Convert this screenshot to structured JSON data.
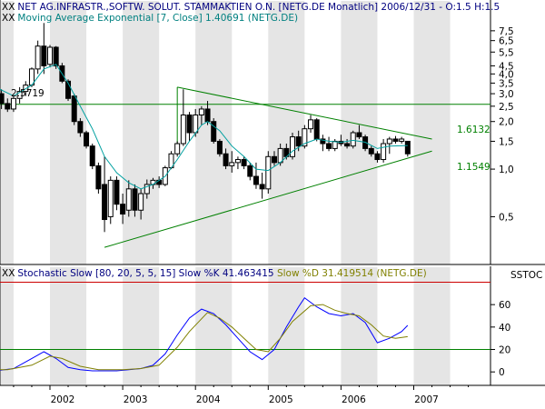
{
  "colors": {
    "background": "#ffffff",
    "stripe": "#e5e5e5",
    "candle": "#000000",
    "moving_average": "#00a0a0",
    "channel_lines": "#008000",
    "stoch_k": "#0000ff",
    "stoch_d": "#808000",
    "overbought_line": "#cc0000",
    "oversold_line": "#008000",
    "title_text": "#000080",
    "indicator_text": "#008080"
  },
  "header": {
    "title": "NET AG.INFRASTR.,SOFTW. SOLUT. STAMMAKTIEN O.N. [NETG.DE  Monatlich] 2006/12/31 - O:1.5 H:1.5",
    "ma_label": "Moving Average Exponential [7, Close] 1.40691 (NETG.DE)",
    "stoch_label_prefix": "Stochastic Slow [80, 20, 5, 5, 15] Slow %K 41.463415 ",
    "stoch_label_suffix": "Slow %D 31.419514 (NETG.DE)",
    "xx_mark": "XX"
  },
  "annotations": {
    "level_left": "2.5719",
    "upper_right": "1.6132",
    "lower_right": "1.1549"
  },
  "chart_data": [
    {
      "type": "candlestick",
      "title": "NET AG.INFRASTR.,SOFTW. SOLUT. STAMMAKTIEN O.N. [NETG.DE  Monatlich] 2006/12/31 - O:1.5 H:1.5",
      "y_scale": "log",
      "ylim": [
        0.27,
        9.5
      ],
      "y_ticks": [
        {
          "value": 7.5,
          "label": "7,5"
        },
        {
          "value": 6.5,
          "label": "6,5"
        },
        {
          "value": 5.5,
          "label": "5,5"
        },
        {
          "value": 4.5,
          "label": "4,5"
        },
        {
          "value": 4.0,
          "label": "4,0"
        },
        {
          "value": 3.5,
          "label": "3,5"
        },
        {
          "value": 3.0,
          "label": "3,0"
        },
        {
          "value": 2.5,
          "label": "2,5"
        },
        {
          "value": 2.0,
          "label": "2,0"
        },
        {
          "value": 1.5,
          "label": "1,5"
        },
        {
          "value": 1.0,
          "label": "1,0"
        },
        {
          "value": 0.5,
          "label": "0,5"
        }
      ],
      "x_labels": [
        "2002",
        "2003",
        "2004",
        "2005",
        "2006",
        "2007"
      ],
      "candles": [
        {
          "date": "2001-01",
          "o": 4.2,
          "h": 5.0,
          "l": 3.6,
          "c": 4.6
        },
        {
          "date": "2001-02",
          "o": 4.6,
          "h": 4.9,
          "l": 3.4,
          "c": 3.7
        },
        {
          "date": "2001-03",
          "o": 3.6,
          "h": 3.7,
          "l": 2.5,
          "c": 2.7
        },
        {
          "date": "2001-04",
          "o": 2.7,
          "h": 3.2,
          "l": 2.6,
          "c": 3.0
        },
        {
          "date": "2001-05",
          "o": 3.0,
          "h": 3.2,
          "l": 2.4,
          "c": 2.6
        },
        {
          "date": "2001-06",
          "o": 2.6,
          "h": 2.8,
          "l": 2.3,
          "c": 2.4
        },
        {
          "date": "2001-07",
          "o": 2.4,
          "h": 2.9,
          "l": 2.3,
          "c": 2.8
        },
        {
          "date": "2001-08",
          "o": 2.8,
          "h": 3.3,
          "l": 2.6,
          "c": 3.1
        },
        {
          "date": "2001-09",
          "o": 3.1,
          "h": 3.6,
          "l": 2.9,
          "c": 3.4
        },
        {
          "date": "2001-10",
          "o": 3.4,
          "h": 4.4,
          "l": 3.3,
          "c": 4.3
        },
        {
          "date": "2001-11",
          "o": 4.3,
          "h": 6.5,
          "l": 4.0,
          "c": 6.0
        },
        {
          "date": "2001-12",
          "o": 6.0,
          "h": 8.4,
          "l": 4.0,
          "c": 4.5
        },
        {
          "date": "2002-01",
          "o": 4.6,
          "h": 6.1,
          "l": 4.4,
          "c": 5.9
        },
        {
          "date": "2002-02",
          "o": 5.9,
          "h": 6.0,
          "l": 4.3,
          "c": 4.5
        },
        {
          "date": "2002-03",
          "o": 4.5,
          "h": 4.7,
          "l": 3.5,
          "c": 3.6
        },
        {
          "date": "2002-04",
          "o": 3.6,
          "h": 3.7,
          "l": 2.7,
          "c": 2.8
        },
        {
          "date": "2002-05",
          "o": 2.9,
          "h": 3.0,
          "l": 1.9,
          "c": 2.0
        },
        {
          "date": "2002-06",
          "o": 2.0,
          "h": 2.1,
          "l": 1.6,
          "c": 1.7
        },
        {
          "date": "2002-07",
          "o": 1.7,
          "h": 1.75,
          "l": 1.35,
          "c": 1.4
        },
        {
          "date": "2002-08",
          "o": 1.4,
          "h": 1.45,
          "l": 1.0,
          "c": 1.05
        },
        {
          "date": "2002-09",
          "o": 1.05,
          "h": 1.1,
          "l": 0.7,
          "c": 0.75
        },
        {
          "date": "2002-10",
          "o": 0.8,
          "h": 1.2,
          "l": 0.4,
          "c": 0.48
        },
        {
          "date": "2002-11",
          "o": 0.5,
          "h": 0.9,
          "l": 0.45,
          "c": 0.85
        },
        {
          "date": "2002-12",
          "o": 0.85,
          "h": 0.9,
          "l": 0.55,
          "c": 0.6
        },
        {
          "date": "2003-01",
          "o": 0.6,
          "h": 0.7,
          "l": 0.45,
          "c": 0.52
        },
        {
          "date": "2003-02",
          "o": 0.55,
          "h": 0.85,
          "l": 0.5,
          "c": 0.75
        },
        {
          "date": "2003-03",
          "o": 0.75,
          "h": 0.8,
          "l": 0.5,
          "c": 0.55
        },
        {
          "date": "2003-04",
          "o": 0.55,
          "h": 0.75,
          "l": 0.48,
          "c": 0.7
        },
        {
          "date": "2003-05",
          "o": 0.7,
          "h": 0.86,
          "l": 0.65,
          "c": 0.8
        },
        {
          "date": "2003-06",
          "o": 0.8,
          "h": 0.88,
          "l": 0.75,
          "c": 0.85
        },
        {
          "date": "2003-07",
          "o": 0.85,
          "h": 0.9,
          "l": 0.76,
          "c": 0.8
        },
        {
          "date": "2003-08",
          "o": 0.8,
          "h": 1.05,
          "l": 0.78,
          "c": 1.02
        },
        {
          "date": "2003-09",
          "o": 1.02,
          "h": 1.3,
          "l": 1.0,
          "c": 1.25
        },
        {
          "date": "2003-10",
          "o": 1.25,
          "h": 1.5,
          "l": 1.2,
          "c": 1.45
        },
        {
          "date": "2003-11",
          "o": 1.45,
          "h": 3.2,
          "l": 1.4,
          "c": 2.2
        },
        {
          "date": "2003-12",
          "o": 2.2,
          "h": 2.3,
          "l": 1.5,
          "c": 1.7
        },
        {
          "date": "2004-01",
          "o": 1.7,
          "h": 2.4,
          "l": 1.6,
          "c": 2.2
        },
        {
          "date": "2004-02",
          "o": 2.2,
          "h": 2.5,
          "l": 1.9,
          "c": 2.4
        },
        {
          "date": "2004-03",
          "o": 2.4,
          "h": 2.7,
          "l": 1.9,
          "c": 2.0
        },
        {
          "date": "2004-04",
          "o": 2.0,
          "h": 2.1,
          "l": 1.45,
          "c": 1.5
        },
        {
          "date": "2004-05",
          "o": 1.5,
          "h": 1.55,
          "l": 1.2,
          "c": 1.25
        },
        {
          "date": "2004-06",
          "o": 1.25,
          "h": 1.35,
          "l": 1.0,
          "c": 1.05
        },
        {
          "date": "2004-07",
          "o": 1.05,
          "h": 1.3,
          "l": 0.95,
          "c": 1.1
        },
        {
          "date": "2004-08",
          "o": 1.1,
          "h": 1.2,
          "l": 1.0,
          "c": 1.15
        },
        {
          "date": "2004-09",
          "o": 1.15,
          "h": 1.2,
          "l": 1.0,
          "c": 1.05
        },
        {
          "date": "2004-10",
          "o": 1.05,
          "h": 1.1,
          "l": 0.85,
          "c": 0.9
        },
        {
          "date": "2004-11",
          "o": 0.9,
          "h": 1.1,
          "l": 0.75,
          "c": 0.8
        },
        {
          "date": "2004-12",
          "o": 0.8,
          "h": 0.95,
          "l": 0.65,
          "c": 0.75
        },
        {
          "date": "2005-01",
          "o": 0.75,
          "h": 1.3,
          "l": 0.7,
          "c": 1.2
        },
        {
          "date": "2005-02",
          "o": 1.2,
          "h": 1.3,
          "l": 1.05,
          "c": 1.1
        },
        {
          "date": "2005-03",
          "o": 1.1,
          "h": 1.45,
          "l": 1.05,
          "c": 1.35
        },
        {
          "date": "2005-04",
          "o": 1.35,
          "h": 1.45,
          "l": 1.15,
          "c": 1.2
        },
        {
          "date": "2005-05",
          "o": 1.2,
          "h": 1.7,
          "l": 1.15,
          "c": 1.6
        },
        {
          "date": "2005-06",
          "o": 1.6,
          "h": 1.75,
          "l": 1.3,
          "c": 1.4
        },
        {
          "date": "2005-07",
          "o": 1.4,
          "h": 1.9,
          "l": 1.35,
          "c": 1.8
        },
        {
          "date": "2005-08",
          "o": 1.8,
          "h": 2.2,
          "l": 1.7,
          "c": 2.05
        },
        {
          "date": "2005-09",
          "o": 2.05,
          "h": 2.1,
          "l": 1.5,
          "c": 1.55
        },
        {
          "date": "2005-10",
          "o": 1.55,
          "h": 1.65,
          "l": 1.3,
          "c": 1.45
        },
        {
          "date": "2005-11",
          "o": 1.45,
          "h": 1.6,
          "l": 1.3,
          "c": 1.35
        },
        {
          "date": "2005-12",
          "o": 1.35,
          "h": 1.55,
          "l": 1.3,
          "c": 1.5
        },
        {
          "date": "2006-01",
          "o": 1.5,
          "h": 1.65,
          "l": 1.4,
          "c": 1.45
        },
        {
          "date": "2006-02",
          "o": 1.45,
          "h": 1.55,
          "l": 1.35,
          "c": 1.4
        },
        {
          "date": "2006-03",
          "o": 1.4,
          "h": 1.75,
          "l": 1.35,
          "c": 1.7
        },
        {
          "date": "2006-04",
          "o": 1.7,
          "h": 1.9,
          "l": 1.55,
          "c": 1.6
        },
        {
          "date": "2006-05",
          "o": 1.6,
          "h": 1.65,
          "l": 1.3,
          "c": 1.35
        },
        {
          "date": "2006-06",
          "o": 1.35,
          "h": 1.4,
          "l": 1.2,
          "c": 1.25
        },
        {
          "date": "2006-07",
          "o": 1.25,
          "h": 1.3,
          "l": 1.1,
          "c": 1.15
        },
        {
          "date": "2006-08",
          "o": 1.15,
          "h": 1.55,
          "l": 1.1,
          "c": 1.45
        },
        {
          "date": "2006-09",
          "o": 1.45,
          "h": 1.6,
          "l": 1.25,
          "c": 1.55
        },
        {
          "date": "2006-10",
          "o": 1.55,
          "h": 1.62,
          "l": 1.45,
          "c": 1.5
        },
        {
          "date": "2006-11",
          "o": 1.5,
          "h": 1.6,
          "l": 1.45,
          "c": 1.55
        },
        {
          "date": "2006-12",
          "o": 1.5,
          "h": 1.5,
          "l": 1.2,
          "c": 1.25
        }
      ],
      "moving_average": {
        "name": "Moving Average Exponential [7, Close] 1.40691 (NETG.DE)",
        "points": [
          [
            "2001-01",
            4.5
          ],
          [
            "2001-04",
            3.3
          ],
          [
            "2001-07",
            2.9
          ],
          [
            "2001-10",
            3.4
          ],
          [
            "2001-12",
            4.3
          ],
          [
            "2002-02",
            4.6
          ],
          [
            "2002-04",
            3.5
          ],
          [
            "2002-06",
            2.5
          ],
          [
            "2002-08",
            1.8
          ],
          [
            "2002-10",
            1.2
          ],
          [
            "2002-12",
            0.95
          ],
          [
            "2003-02",
            0.82
          ],
          [
            "2003-04",
            0.75
          ],
          [
            "2003-06",
            0.8
          ],
          [
            "2003-08",
            0.9
          ],
          [
            "2003-10",
            1.15
          ],
          [
            "2003-12",
            1.5
          ],
          [
            "2004-02",
            1.9
          ],
          [
            "2004-03",
            2.0
          ],
          [
            "2004-05",
            1.75
          ],
          [
            "2004-07",
            1.4
          ],
          [
            "2004-09",
            1.2
          ],
          [
            "2004-11",
            1.0
          ],
          [
            "2005-01",
            0.98
          ],
          [
            "2005-03",
            1.1
          ],
          [
            "2005-05",
            1.3
          ],
          [
            "2005-07",
            1.45
          ],
          [
            "2005-09",
            1.55
          ],
          [
            "2005-11",
            1.5
          ],
          [
            "2006-01",
            1.48
          ],
          [
            "2006-03",
            1.52
          ],
          [
            "2006-05",
            1.48
          ],
          [
            "2006-07",
            1.35
          ],
          [
            "2006-09",
            1.4
          ],
          [
            "2006-12",
            1.41
          ]
        ]
      },
      "reference_lines": [
        {
          "type": "horizontal",
          "y": 2.5719,
          "label": "2.5719"
        },
        {
          "type": "trend",
          "from": [
            "2003-10",
            3.3
          ],
          "to": [
            "2007-04",
            1.55
          ]
        },
        {
          "type": "trend",
          "from": [
            "2002-10",
            0.32
          ],
          "to": [
            "2007-04",
            1.3
          ]
        },
        {
          "type": "trend",
          "from": [
            "2003-10",
            3.3
          ],
          "to": [
            "2003-10",
            1.3
          ]
        }
      ],
      "point_labels": [
        {
          "date": "2006-12",
          "value": 1.6132,
          "label": "1.6132"
        },
        {
          "date": "2006-12",
          "value": 1.1549,
          "label": "1.1549"
        }
      ]
    },
    {
      "type": "line",
      "title": "Stochastic Slow [80, 20, 5, 5, 15] Slow %K 41.463415 Slow %D 31.419514 (NETG.DE)",
      "ylabel": "SSTOC",
      "ylim": [
        -12,
        82
      ],
      "y_ticks": [
        60,
        40,
        20,
        0
      ],
      "reference_lines": [
        80,
        20
      ],
      "series": [
        {
          "name": "Slow %K 41.463415",
          "points": [
            [
              "2001-01",
              1
            ],
            [
              "2001-04",
              1
            ],
            [
              "2001-07",
              3
            ],
            [
              "2001-10",
              12
            ],
            [
              "2001-12",
              18
            ],
            [
              "2002-02",
              12
            ],
            [
              "2002-04",
              4
            ],
            [
              "2002-06",
              2
            ],
            [
              "2002-08",
              1
            ],
            [
              "2002-10",
              1
            ],
            [
              "2002-12",
              1
            ],
            [
              "2003-02",
              2
            ],
            [
              "2003-04",
              3
            ],
            [
              "2003-06",
              6
            ],
            [
              "2003-08",
              16
            ],
            [
              "2003-10",
              33
            ],
            [
              "2003-12",
              48
            ],
            [
              "2004-02",
              56
            ],
            [
              "2004-04",
              52
            ],
            [
              "2004-06",
              42
            ],
            [
              "2004-08",
              30
            ],
            [
              "2004-10",
              18
            ],
            [
              "2004-12",
              11
            ],
            [
              "2005-02",
              20
            ],
            [
              "2005-04",
              40
            ],
            [
              "2005-06",
              58
            ],
            [
              "2005-07",
              66
            ],
            [
              "2005-09",
              58
            ],
            [
              "2005-11",
              52
            ],
            [
              "2006-01",
              50
            ],
            [
              "2006-03",
              52
            ],
            [
              "2006-05",
              44
            ],
            [
              "2006-07",
              26
            ],
            [
              "2006-09",
              30
            ],
            [
              "2006-11",
              36
            ],
            [
              "2006-12",
              41.46
            ]
          ]
        },
        {
          "name": "Slow %D 31.419514",
          "points": [
            [
              "2001-01",
              2
            ],
            [
              "2001-06",
              2
            ],
            [
              "2001-10",
              6
            ],
            [
              "2002-01",
              14
            ],
            [
              "2002-03",
              12
            ],
            [
              "2002-06",
              5
            ],
            [
              "2002-09",
              2
            ],
            [
              "2003-01",
              2
            ],
            [
              "2003-04",
              3
            ],
            [
              "2003-07",
              6
            ],
            [
              "2003-10",
              22
            ],
            [
              "2003-12",
              36
            ],
            [
              "2004-03",
              53
            ],
            [
              "2004-05",
              48
            ],
            [
              "2004-07",
              40
            ],
            [
              "2004-09",
              30
            ],
            [
              "2004-11",
              20
            ],
            [
              "2005-01",
              18
            ],
            [
              "2005-03",
              30
            ],
            [
              "2005-05",
              45
            ],
            [
              "2005-08",
              59
            ],
            [
              "2005-10",
              60
            ],
            [
              "2005-12",
              55
            ],
            [
              "2006-02",
              52
            ],
            [
              "2006-04",
              50
            ],
            [
              "2006-06",
              42
            ],
            [
              "2006-08",
              32
            ],
            [
              "2006-10",
              30
            ],
            [
              "2006-12",
              31.42
            ]
          ]
        }
      ]
    }
  ]
}
